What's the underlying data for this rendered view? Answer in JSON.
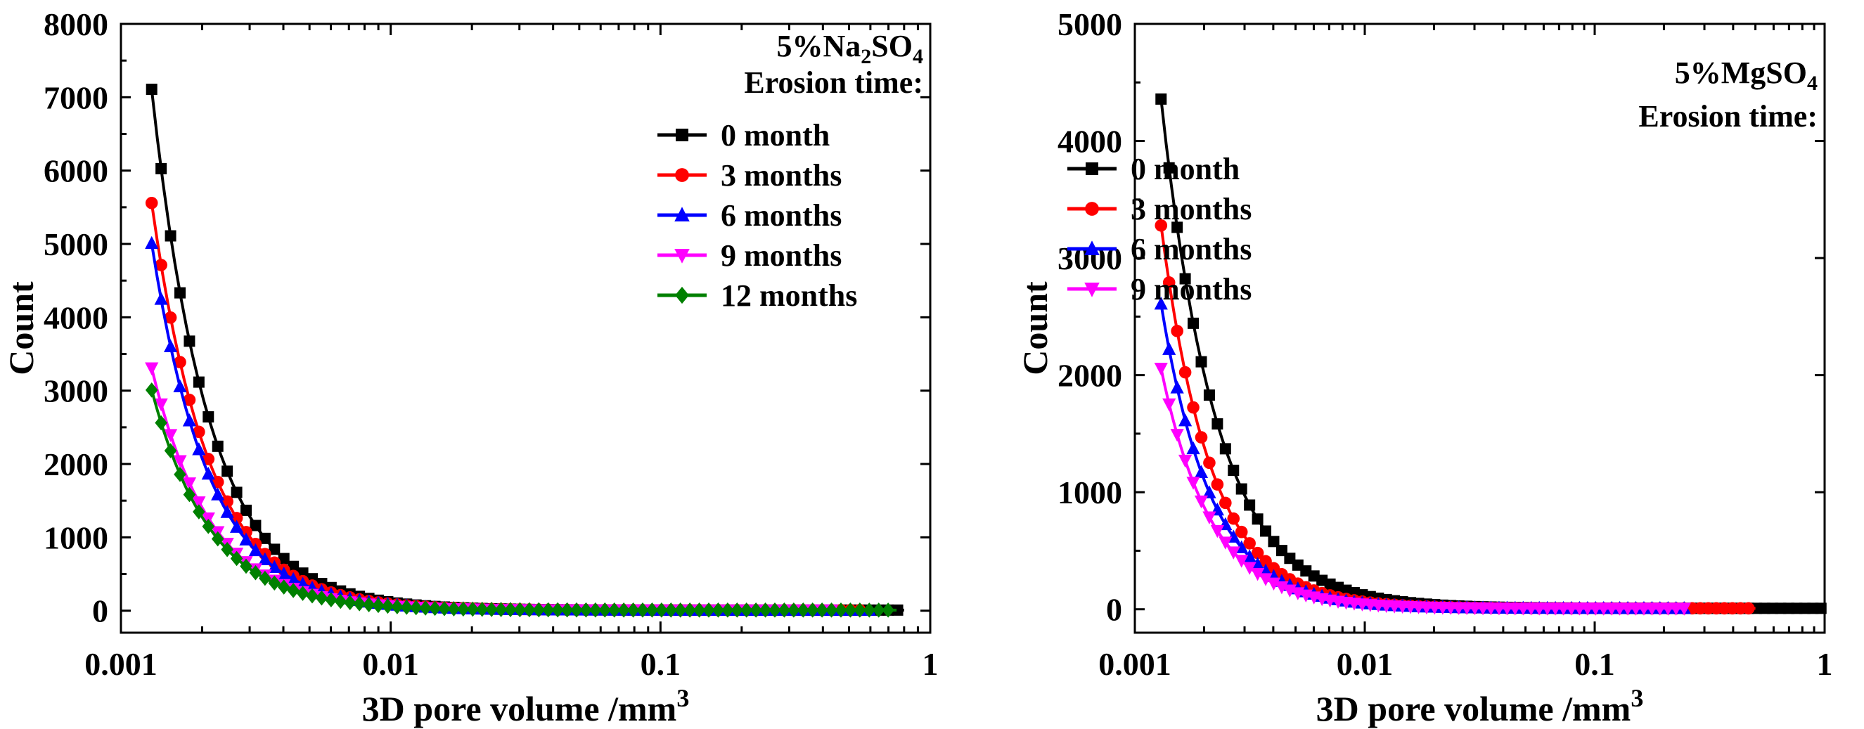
{
  "chart_data": [
    {
      "type": "line",
      "panel": "left",
      "xscale": "log",
      "xlim": [
        0.001,
        1
      ],
      "ylim": [
        -300,
        8000
      ],
      "xticks": [
        0.001,
        0.01,
        0.1,
        1
      ],
      "xtick_labels": [
        "0.001",
        "0.01",
        "0.1",
        "1"
      ],
      "yticks": [
        0,
        1000,
        2000,
        3000,
        4000,
        5000,
        6000,
        7000,
        8000
      ],
      "ytick_labels": [
        "0",
        "1000",
        "2000",
        "3000",
        "4000",
        "5000",
        "6000",
        "7000",
        "8000"
      ],
      "xlabel": "3D pore volume  /mm",
      "xlabel_sup": "3",
      "ylabel": "Count",
      "legend_title": {
        "prefix": "5%Na",
        "sub1": "2",
        "mid": "SO",
        "sub2": "4",
        "line2": "Erosion time:"
      },
      "legend_position": "top-right",
      "series": [
        {
          "name": "0 month",
          "color": "#000000",
          "marker": "square",
          "y0": 7100,
          "decay": 2.05,
          "xmax": 0.8
        },
        {
          "name": "3 months",
          "color": "#ff0000",
          "marker": "circle",
          "y0": 5550,
          "decay": 2.05,
          "xmax": 0.55
        },
        {
          "name": "6 months",
          "color": "#0000ff",
          "marker": "triangle-up",
          "y0": 5000,
          "decay": 2.05,
          "xmax": 0.6
        },
        {
          "name": "9 months",
          "color": "#ff00ff",
          "marker": "triangle-down",
          "y0": 3300,
          "decay": 2.0,
          "xmax": 0.45
        },
        {
          "name": "12 months",
          "color": "#008000",
          "marker": "diamond",
          "y0": 3000,
          "decay": 2.0,
          "xmax": 0.75
        }
      ]
    },
    {
      "type": "line",
      "panel": "right",
      "xscale": "log",
      "xlim": [
        0.001,
        1
      ],
      "ylim": [
        -200,
        5000
      ],
      "xticks": [
        0.001,
        0.01,
        0.1,
        1
      ],
      "xtick_labels": [
        "0.001",
        "0.01",
        "0.1",
        "1"
      ],
      "yticks": [
        0,
        1000,
        2000,
        3000,
        4000,
        5000
      ],
      "ytick_labels": [
        "0",
        "1000",
        "2000",
        "3000",
        "4000",
        "5000"
      ],
      "xlabel": "3D pore volume  /mm",
      "xlabel_sup": "3",
      "ylabel": "Count",
      "legend_title": {
        "prefix": "5%MgSO",
        "sub1": "4",
        "mid": "",
        "sub2": "",
        "line2": "Erosion time:"
      },
      "legend_position": "top-right",
      "series": [
        {
          "name": "0 month",
          "color": "#000000",
          "marker": "square",
          "y0": 4350,
          "decay": 1.8,
          "xmax": 1.0
        },
        {
          "name": "3 months",
          "color": "#ff0000",
          "marker": "circle",
          "y0": 3270,
          "decay": 2.0,
          "xmax": 0.5
        },
        {
          "name": "6 months",
          "color": "#0000ff",
          "marker": "triangle-up",
          "y0": 2600,
          "decay": 2.0,
          "xmax": 0.25
        },
        {
          "name": "9 months",
          "color": "#ff00ff",
          "marker": "triangle-down",
          "y0": 2050,
          "decay": 2.0,
          "xmax": 0.25
        }
      ]
    }
  ]
}
